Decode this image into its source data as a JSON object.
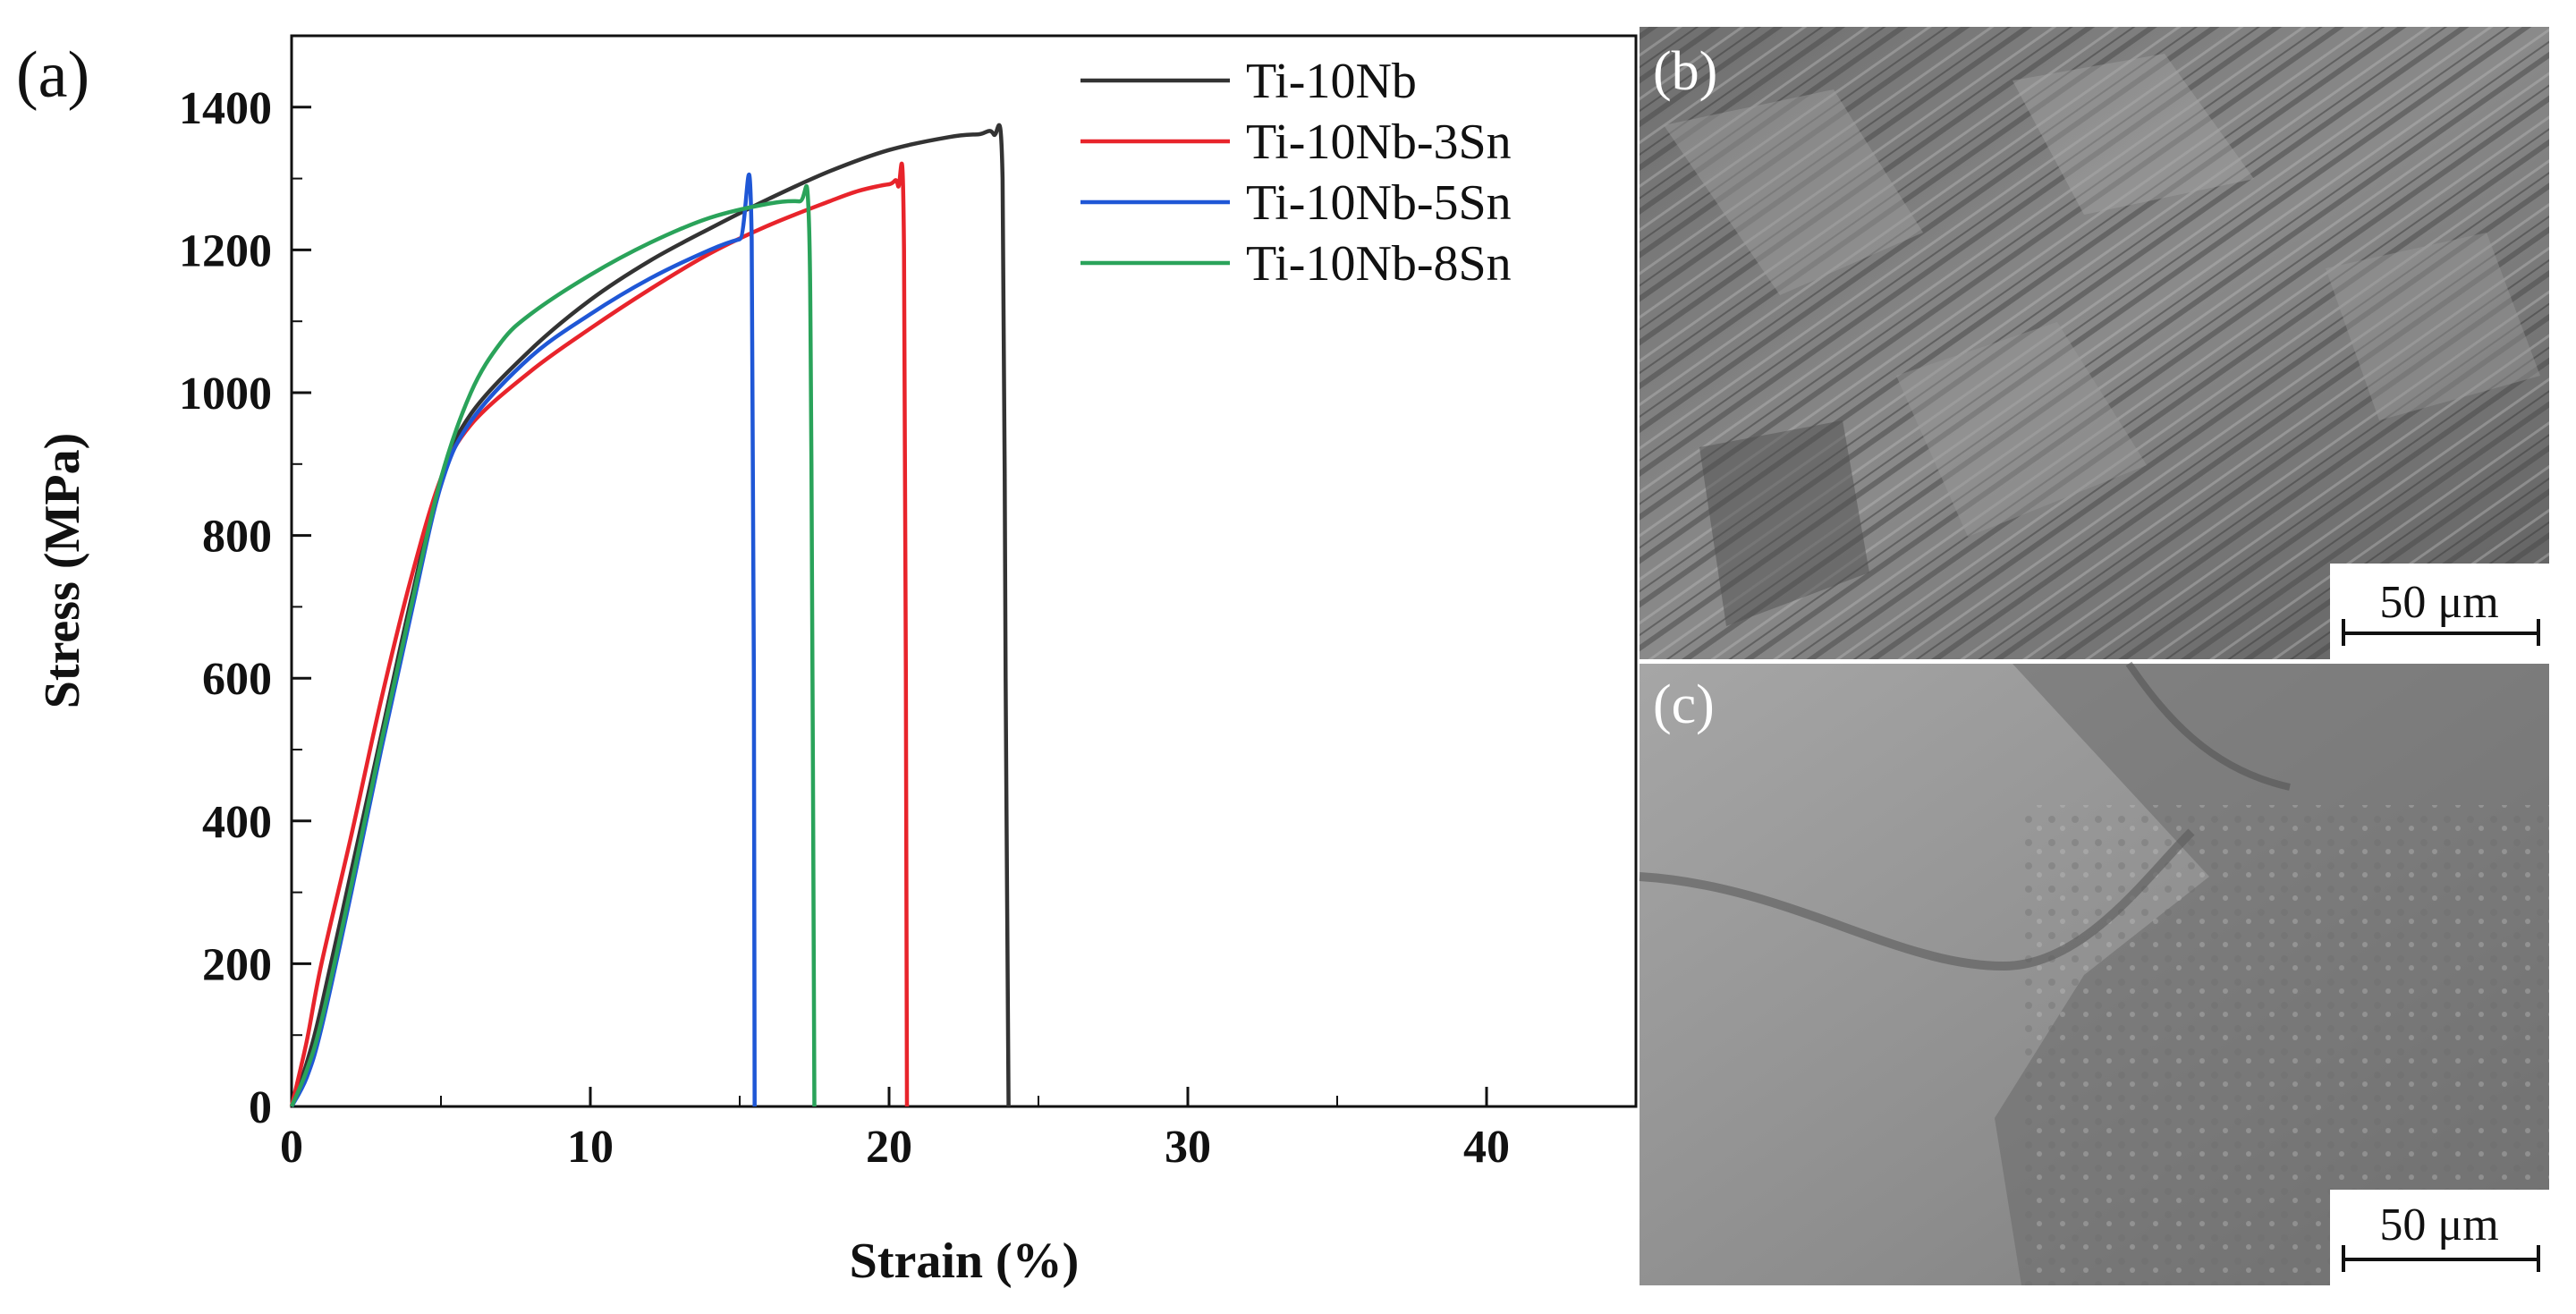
{
  "figure": {
    "panel_a_label": "(a)",
    "panel_b_label": "(b)",
    "panel_c_label": "(c)",
    "scale_bar_b": "50 μm",
    "scale_bar_c": "50 μm"
  },
  "chart_data": {
    "type": "line",
    "title": "",
    "xlabel": "Strain (%)",
    "ylabel": "Stress (MPa)",
    "xlim": [
      0,
      45
    ],
    "ylim": [
      0,
      1500
    ],
    "xticks": [
      0,
      10,
      20,
      30,
      40
    ],
    "xtick_labels": [
      "0",
      "10",
      "20",
      "30",
      "40"
    ],
    "yticks": [
      0,
      200,
      400,
      600,
      800,
      1000,
      1200,
      1400
    ],
    "ytick_labels": [
      "0",
      "200",
      "400",
      "600",
      "800",
      "1000",
      "1200",
      "1400"
    ],
    "legend_position": "top-right",
    "series": [
      {
        "name": "Ti-10Nb",
        "color": "#333333",
        "x": [
          0,
          0.5,
          1,
          2,
          3,
          4,
          5,
          6,
          8,
          10,
          12,
          14,
          16,
          18,
          20,
          22,
          23,
          23.5,
          23.8,
          23.9,
          24.0
        ],
        "y": [
          0,
          60,
          140,
          330,
          520,
          710,
          880,
          970,
          1060,
          1130,
          1185,
          1230,
          1272,
          1310,
          1340,
          1358,
          1362,
          1362,
          1300,
          600,
          0
        ]
      },
      {
        "name": "Ti-10Nb-3Sn",
        "color": "#e8242b",
        "x": [
          0,
          0.5,
          1,
          2,
          3,
          4,
          5,
          6,
          8,
          10,
          12,
          14,
          16,
          18,
          19,
          20,
          20.3,
          20.5,
          20.6
        ],
        "y": [
          0,
          90,
          200,
          380,
          570,
          740,
          880,
          955,
          1030,
          1090,
          1145,
          1195,
          1235,
          1268,
          1283,
          1292,
          1290,
          1200,
          0
        ]
      },
      {
        "name": "Ti-10Nb-5Sn",
        "color": "#1f57d6",
        "x": [
          0,
          0.5,
          1,
          2,
          3,
          4,
          5,
          6,
          8,
          10,
          12,
          14,
          15,
          15.4,
          15.5
        ],
        "y": [
          0,
          40,
          110,
          300,
          500,
          690,
          870,
          960,
          1050,
          1110,
          1160,
          1200,
          1215,
          1215,
          0
        ]
      },
      {
        "name": "Ti-10Nb-8Sn",
        "color": "#2aa35a",
        "x": [
          0,
          0.5,
          1,
          2,
          3,
          4,
          5,
          6,
          7,
          8,
          10,
          12,
          14,
          16,
          17,
          17.3,
          17.4,
          17.5
        ],
        "y": [
          0,
          50,
          120,
          310,
          510,
          700,
          880,
          1000,
          1070,
          1110,
          1165,
          1210,
          1245,
          1265,
          1268,
          1260,
          900,
          0
        ]
      }
    ]
  }
}
